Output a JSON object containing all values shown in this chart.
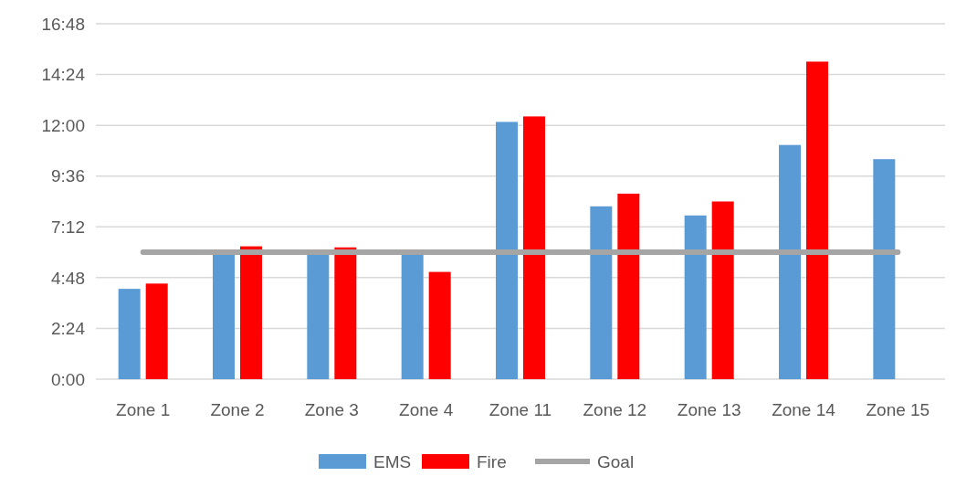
{
  "chart_data": {
    "type": "bar",
    "categories": [
      "Zone 1",
      "Zone 2",
      "Zone 3",
      "Zone 4",
      "Zone 11",
      "Zone 12",
      "Zone 13",
      "Zone 14",
      "Zone 15"
    ],
    "series": [
      {
        "name": "EMS",
        "color": "#5b9bd5",
        "values": [
          4.27,
          5.95,
          5.95,
          5.95,
          12.16,
          8.17,
          7.74,
          11.07,
          10.4
        ]
      },
      {
        "name": "Fire",
        "color": "#ff0000",
        "values": [
          4.52,
          6.28,
          6.23,
          5.07,
          12.42,
          8.77,
          8.4,
          15.01,
          null
        ]
      },
      {
        "name": "Goal",
        "type": "line",
        "color": "#a5a5a5",
        "values": [
          6,
          6,
          6,
          6,
          6,
          6,
          6,
          6,
          6
        ]
      }
    ],
    "ylim": [
      0,
      16.8
    ],
    "yticks": [
      {
        "value": 0,
        "label": "0:00"
      },
      {
        "value": 2.4,
        "label": "2:24"
      },
      {
        "value": 4.8,
        "label": "4:48"
      },
      {
        "value": 7.2,
        "label": "7:12"
      },
      {
        "value": 9.6,
        "label": "9:36"
      },
      {
        "value": 12,
        "label": "12:00"
      },
      {
        "value": 14.4,
        "label": "14:24"
      },
      {
        "value": 16.8,
        "label": "16:48"
      }
    ],
    "grid": "y",
    "legend": "bottom"
  }
}
